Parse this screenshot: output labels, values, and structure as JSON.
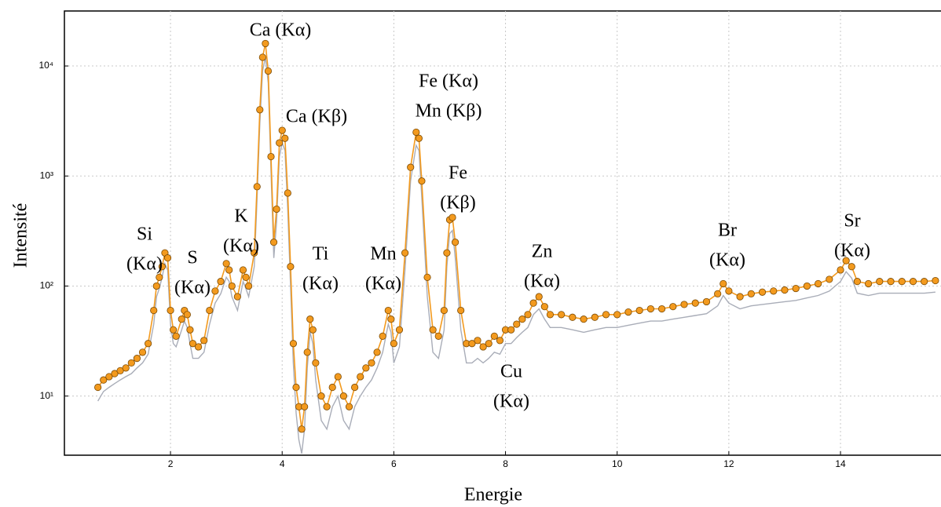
{
  "chart_data": {
    "type": "line",
    "log_y": true,
    "grid": true,
    "x_label": "Energie",
    "y_label": "Intensité",
    "xlim": [
      0.1,
      15.8
    ],
    "xticks": [
      2,
      4,
      6,
      8,
      10,
      12,
      14
    ],
    "ylim": [
      2.9,
      31600
    ],
    "yticks": [
      {
        "value": 10,
        "label": "10¹"
      },
      {
        "value": 100,
        "label": "10²"
      },
      {
        "value": 1000,
        "label": "10³"
      },
      {
        "value": 10000,
        "label": "10⁴"
      }
    ],
    "x": [
      0.7,
      0.8,
      0.9,
      1.0,
      1.1,
      1.2,
      1.3,
      1.4,
      1.5,
      1.6,
      1.7,
      1.75,
      1.8,
      1.85,
      1.9,
      1.95,
      2.0,
      2.05,
      2.1,
      2.2,
      2.25,
      2.3,
      2.35,
      2.4,
      2.5,
      2.6,
      2.7,
      2.8,
      2.9,
      3.0,
      3.05,
      3.1,
      3.2,
      3.3,
      3.35,
      3.4,
      3.5,
      3.55,
      3.6,
      3.65,
      3.7,
      3.75,
      3.8,
      3.85,
      3.9,
      3.95,
      4.0,
      4.05,
      4.1,
      4.15,
      4.2,
      4.25,
      4.3,
      4.35,
      4.4,
      4.45,
      4.5,
      4.55,
      4.6,
      4.7,
      4.8,
      4.9,
      5.0,
      5.1,
      5.2,
      5.3,
      5.4,
      5.5,
      5.6,
      5.7,
      5.8,
      5.9,
      5.95,
      6.0,
      6.1,
      6.2,
      6.3,
      6.4,
      6.45,
      6.5,
      6.6,
      6.7,
      6.8,
      6.9,
      6.95,
      7.0,
      7.05,
      7.1,
      7.2,
      7.3,
      7.4,
      7.5,
      7.6,
      7.7,
      7.8,
      7.9,
      8.0,
      8.1,
      8.2,
      8.3,
      8.4,
      8.5,
      8.6,
      8.7,
      8.8,
      9.0,
      9.2,
      9.4,
      9.6,
      9.8,
      10.0,
      10.2,
      10.4,
      10.6,
      10.8,
      11.0,
      11.2,
      11.4,
      11.6,
      11.8,
      11.9,
      12.0,
      12.2,
      12.4,
      12.6,
      12.8,
      13.0,
      13.2,
      13.4,
      13.6,
      13.8,
      14.0,
      14.1,
      14.2,
      14.3,
      14.5,
      14.7,
      14.9,
      15.1,
      15.3,
      15.5,
      15.7
    ],
    "series": [
      {
        "color": "#a9adb8",
        "markers": false,
        "values": [
          9,
          11,
          12,
          13,
          14,
          15,
          16,
          18,
          20,
          24,
          45,
          80,
          95,
          120,
          160,
          140,
          45,
          30,
          28,
          40,
          48,
          42,
          30,
          22,
          22,
          25,
          45,
          70,
          85,
          120,
          110,
          80,
          60,
          110,
          95,
          80,
          150,
          600,
          3000,
          9000,
          12000,
          7000,
          1100,
          180,
          380,
          1500,
          2000,
          1700,
          500,
          100,
          20,
          7,
          4,
          3,
          5,
          18,
          38,
          30,
          14,
          6,
          5,
          8,
          10,
          6,
          5,
          8,
          10,
          12,
          14,
          18,
          25,
          45,
          38,
          20,
          28,
          140,
          900,
          1900,
          1700,
          650,
          80,
          25,
          22,
          40,
          150,
          300,
          320,
          180,
          40,
          20,
          20,
          22,
          20,
          22,
          25,
          24,
          30,
          30,
          34,
          38,
          42,
          55,
          62,
          50,
          42,
          42,
          40,
          38,
          40,
          42,
          42,
          44,
          46,
          48,
          48,
          50,
          52,
          54,
          56,
          66,
          82,
          70,
          62,
          66,
          68,
          70,
          72,
          74,
          78,
          82,
          90,
          110,
          135,
          118,
          86,
          82,
          86,
          86,
          86,
          86,
          86,
          88
        ]
      },
      {
        "color": "#f39a1e",
        "markers": true,
        "values": [
          12,
          14,
          15,
          16,
          17,
          18,
          20,
          22,
          25,
          30,
          60,
          100,
          120,
          150,
          200,
          180,
          60,
          40,
          35,
          50,
          60,
          55,
          40,
          30,
          28,
          32,
          60,
          90,
          110,
          160,
          140,
          100,
          80,
          140,
          120,
          100,
          200,
          800,
          4000,
          12000,
          16000,
          9000,
          1500,
          250,
          500,
          2000,
          2600,
          2200,
          700,
          150,
          30,
          12,
          8,
          5,
          8,
          25,
          50,
          40,
          20,
          10,
          8,
          12,
          15,
          10,
          8,
          12,
          15,
          18,
          20,
          25,
          35,
          60,
          50,
          30,
          40,
          200,
          1200,
          2500,
          2200,
          900,
          120,
          40,
          35,
          60,
          200,
          400,
          420,
          250,
          60,
          30,
          30,
          32,
          28,
          30,
          35,
          32,
          40,
          40,
          45,
          50,
          55,
          70,
          80,
          65,
          55,
          55,
          52,
          50,
          52,
          55,
          55,
          58,
          60,
          62,
          62,
          65,
          68,
          70,
          72,
          85,
          105,
          90,
          80,
          85,
          88,
          90,
          92,
          95,
          100,
          105,
          115,
          140,
          170,
          150,
          110,
          105,
          110,
          110,
          110,
          110,
          110,
          112
        ]
      }
    ],
    "annotations": [
      [
        "Ca (Kα)"
      ],
      [
        "Ca (Kβ)"
      ],
      [
        "Fe (Kα)",
        "Mn (Kβ)"
      ],
      [
        "Fe",
        "(Kβ)"
      ],
      [
        "Si",
        "(Kα)"
      ],
      [
        "S",
        "(Kα)"
      ],
      [
        "K",
        "(Kα)"
      ],
      [
        "Ti",
        "(Kα)"
      ],
      [
        "Mn",
        "(Kα)"
      ],
      [
        "Zn",
        "(Kα)"
      ],
      [
        "Cu",
        "(Kα)"
      ],
      [
        "Br",
        "(Kα)"
      ],
      [
        "Sr",
        "(Kα)"
      ]
    ]
  }
}
